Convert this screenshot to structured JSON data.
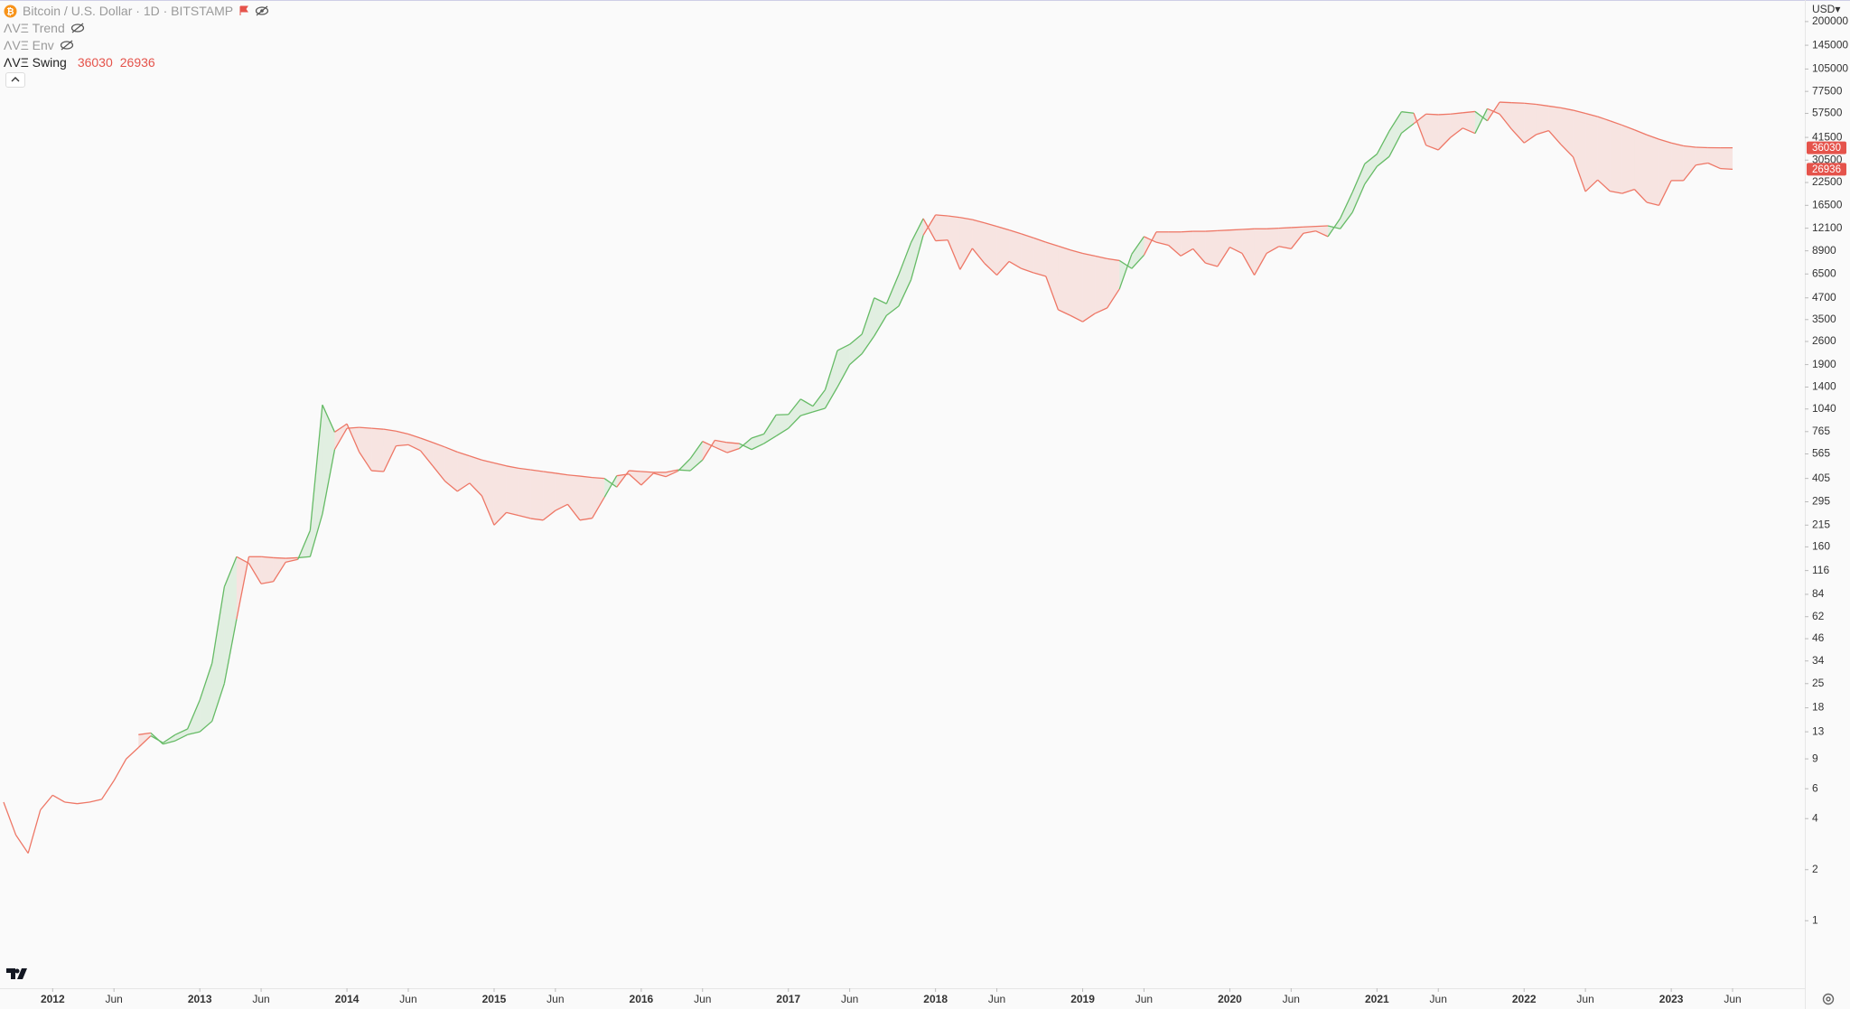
{
  "chart_data": {
    "type": "line",
    "title": "Bitcoin / U.S. Dollar · 1D · BITSTAMP",
    "currency": "USD",
    "indicators": [
      "ΛVΞ Trend",
      "ΛVΞ Env",
      "ΛVΞ Swing"
    ],
    "log": true,
    "x": [
      "2011-09",
      "2011-10",
      "2011-11",
      "2011-12",
      "2012-01",
      "2012-02",
      "2012-03",
      "2012-04",
      "2012-05",
      "2012-06",
      "2012-07",
      "2012-08",
      "2012-09",
      "2012-10",
      "2012-11",
      "2012-12",
      "2013-01",
      "2013-02",
      "2013-03",
      "2013-04",
      "2013-05",
      "2013-06",
      "2013-07",
      "2013-08",
      "2013-09",
      "2013-10",
      "2013-11",
      "2013-12",
      "2014-01",
      "2014-02",
      "2014-03",
      "2014-04",
      "2014-05",
      "2014-06",
      "2014-07",
      "2014-08",
      "2014-09",
      "2014-10",
      "2014-11",
      "2014-12",
      "2015-01",
      "2015-02",
      "2015-03",
      "2015-04",
      "2015-05",
      "2015-06",
      "2015-07",
      "2015-08",
      "2015-09",
      "2015-10",
      "2015-11",
      "2015-12",
      "2016-01",
      "2016-02",
      "2016-03",
      "2016-04",
      "2016-05",
      "2016-06",
      "2016-07",
      "2016-08",
      "2016-09",
      "2016-10",
      "2016-11",
      "2016-12",
      "2017-01",
      "2017-02",
      "2017-03",
      "2017-04",
      "2017-05",
      "2017-06",
      "2017-07",
      "2017-08",
      "2017-09",
      "2017-10",
      "2017-11",
      "2017-12",
      "2018-01",
      "2018-02",
      "2018-03",
      "2018-04",
      "2018-05",
      "2018-06",
      "2018-07",
      "2018-08",
      "2018-09",
      "2018-10",
      "2018-11",
      "2018-12",
      "2019-01",
      "2019-02",
      "2019-03",
      "2019-04",
      "2019-05",
      "2019-06",
      "2019-07",
      "2019-08",
      "2019-09",
      "2019-10",
      "2019-11",
      "2019-12",
      "2020-01",
      "2020-02",
      "2020-03",
      "2020-04",
      "2020-05",
      "2020-06",
      "2020-07",
      "2020-08",
      "2020-09",
      "2020-10",
      "2020-11",
      "2020-12",
      "2021-01",
      "2021-02",
      "2021-03",
      "2021-04",
      "2021-05",
      "2021-06",
      "2021-07",
      "2021-08",
      "2021-09",
      "2021-10",
      "2021-11",
      "2021-12",
      "2022-01",
      "2022-02",
      "2022-03",
      "2022-04",
      "2022-05",
      "2022-06",
      "2022-07",
      "2022-08",
      "2022-09",
      "2022-10",
      "2022-11",
      "2022-12",
      "2023-01",
      "2023-02",
      "2023-03",
      "2023-04",
      "2023-05",
      "2023-06"
    ],
    "series": [
      {
        "values": [
          5,
          3.2,
          2.5,
          4.5,
          5.5,
          5,
          4.9,
          5,
          5.2,
          6.7,
          9,
          10.5,
          12.3,
          11.2,
          12.5,
          13.5,
          20,
          33,
          93,
          140,
          128,
          97,
          100,
          130,
          135,
          200,
          1100,
          760,
          850,
          580,
          450,
          445,
          630,
          640,
          590,
          480,
          390,
          340,
          380,
          320,
          215,
          255,
          245,
          235,
          230,
          262,
          285,
          230,
          236,
          314,
          420,
          430,
          370,
          435,
          415,
          448,
          530,
          670,
          620,
          575,
          608,
          700,
          740,
          960,
          965,
          1190,
          1080,
          1350,
          2300,
          2500,
          2870,
          4700,
          4340,
          6450,
          9950,
          13800,
          10200,
          10300,
          6900,
          9200,
          7500,
          6400,
          7700,
          7000,
          6600,
          6300,
          4000,
          3700,
          3400,
          3800,
          4100,
          5300,
          8500,
          10800,
          10000,
          9600,
          8300,
          9150,
          7550,
          7200,
          9350,
          8600,
          6400,
          8600,
          9450,
          9150,
          11300,
          11650,
          10800,
          13800,
          19700,
          29000,
          33100,
          45200,
          58800,
          57700,
          37300,
          35000,
          41500,
          47100,
          43800,
          61300,
          57000,
          46200,
          38500,
          43200,
          45500,
          37700,
          31800,
          19900,
          23300,
          20000,
          19400,
          20500,
          17200,
          16500,
          23100,
          23100,
          28500,
          29300,
          27200,
          26936
        ]
      },
      {
        "values": [
          null,
          null,
          null,
          null,
          null,
          null,
          null,
          null,
          null,
          null,
          null,
          12.5,
          12.8,
          11,
          11.5,
          12.5,
          13,
          15,
          25,
          60,
          140,
          140,
          138,
          137,
          138,
          140,
          250,
          600,
          800,
          810,
          800,
          790,
          770,
          740,
          700,
          660,
          620,
          580,
          550,
          520,
          500,
          480,
          465,
          455,
          445,
          435,
          425,
          418,
          410,
          405,
          360,
          450,
          445,
          440,
          440,
          455,
          450,
          520,
          680,
          660,
          650,
          600,
          650,
          720,
          800,
          950,
          1000,
          1050,
          1400,
          1900,
          2200,
          2800,
          3700,
          4200,
          6000,
          11000,
          14500,
          14300,
          14000,
          13600,
          13000,
          12400,
          11800,
          11200,
          10600,
          10000,
          9500,
          9000,
          8600,
          8300,
          8000,
          7800,
          7000,
          8400,
          11500,
          11500,
          11500,
          11600,
          11600,
          11700,
          11800,
          11900,
          12000,
          12000,
          12100,
          12200,
          12300,
          12400,
          12500,
          12000,
          15000,
          22000,
          28000,
          32000,
          44000,
          50000,
          57000,
          56500,
          57000,
          58000,
          59000,
          52000,
          67000,
          66500,
          66000,
          65000,
          63500,
          62000,
          60000,
          57500,
          55000,
          52000,
          49000,
          46000,
          43000,
          40500,
          38500,
          37000,
          36300,
          36100,
          36050,
          36030
        ]
      }
    ],
    "point_colors": [
      "#e76",
      "#e76",
      "#e76",
      "#e76",
      "#e76",
      "#e76",
      "#e76",
      "#e76",
      "#e76",
      "#e76",
      "#e76",
      "#e76",
      "#e76",
      "#6b6",
      "#6b6",
      "#6b6",
      "#6b6",
      "#6b6",
      "#6b6",
      "#6b6",
      "#e76",
      "#e76",
      "#e76",
      "#e76",
      "#e76",
      "#6b6",
      "#6b6",
      "#6b6",
      "#e76",
      "#e76",
      "#e76",
      "#e76",
      "#e76",
      "#e76",
      "#e76",
      "#e76",
      "#e76",
      "#e76",
      "#e76",
      "#e76",
      "#e76",
      "#e76",
      "#e76",
      "#e76",
      "#e76",
      "#e76",
      "#e76",
      "#e76",
      "#e76",
      "#e76",
      "#6b6",
      "#e76",
      "#e76",
      "#e76",
      "#e76",
      "#e76",
      "#6b6",
      "#6b6",
      "#e76",
      "#e76",
      "#e76",
      "#6b6",
      "#6b6",
      "#6b6",
      "#6b6",
      "#6b6",
      "#6b6",
      "#6b6",
      "#6b6",
      "#6b6",
      "#6b6",
      "#6b6",
      "#6b6",
      "#6b6",
      "#6b6",
      "#6b6",
      "#e76",
      "#e76",
      "#e76",
      "#e76",
      "#e76",
      "#e76",
      "#e76",
      "#e76",
      "#e76",
      "#e76",
      "#e76",
      "#e76",
      "#e76",
      "#e76",
      "#e76",
      "#e76",
      "#6b6",
      "#6b6",
      "#e76",
      "#e76",
      "#e76",
      "#e76",
      "#e76",
      "#e76",
      "#e76",
      "#e76",
      "#e76",
      "#e76",
      "#e76",
      "#e76",
      "#e76",
      "#e76",
      "#e76",
      "#6b6",
      "#6b6",
      "#6b6",
      "#6b6",
      "#6b6",
      "#6b6",
      "#6b6",
      "#e76",
      "#e76",
      "#e76",
      "#e76",
      "#e76",
      "#6b6",
      "#e76",
      "#e76",
      "#e76",
      "#e76",
      "#e76",
      "#e76",
      "#e76",
      "#e76",
      "#e76",
      "#e76",
      "#e76",
      "#e76",
      "#e76",
      "#e76",
      "#e76",
      "#e76",
      "#e76",
      "#e76",
      "#e76",
      "#e76"
    ],
    "badge_color": "#e5534b",
    "xlim": [
      "2011-09",
      "2023-06"
    ],
    "xticks": [
      {
        "value": "2012-01",
        "label": "2012"
      },
      {
        "value": "2012-06",
        "label": "Jun"
      },
      {
        "value": "2013-01",
        "label": "2013"
      },
      {
        "value": "2013-06",
        "label": "Jun"
      },
      {
        "value": "2014-01",
        "label": "2014"
      },
      {
        "value": "2014-06",
        "label": "Jun"
      },
      {
        "value": "2015-01",
        "label": "2015"
      },
      {
        "value": "2015-06",
        "label": "Jun"
      },
      {
        "value": "2016-01",
        "label": "2016"
      },
      {
        "value": "2016-06",
        "label": "Jun"
      },
      {
        "value": "2017-01",
        "label": "2017"
      },
      {
        "value": "2017-06",
        "label": "Jun"
      },
      {
        "value": "2018-01",
        "label": "2018"
      },
      {
        "value": "2018-06",
        "label": "Jun"
      },
      {
        "value": "2019-01",
        "label": "2019"
      },
      {
        "value": "2019-06",
        "label": "Jun"
      },
      {
        "value": "2020-01",
        "label": "2020"
      },
      {
        "value": "2020-06",
        "label": "Jun"
      },
      {
        "value": "2021-01",
        "label": "2021"
      },
      {
        "value": "2021-06",
        "label": "Jun"
      },
      {
        "value": "2022-01",
        "label": "2022"
      },
      {
        "value": "2022-06",
        "label": "Jun"
      },
      {
        "value": "2023-01",
        "label": "2023"
      },
      {
        "value": "2023-06",
        "label": "Jun"
      }
    ],
    "ylim": [
      0.4,
      268000
    ],
    "yticks": [
      200000,
      145000,
      105000,
      77500,
      57500,
      41500,
      30500,
      22500,
      16500,
      12100,
      8900,
      6500,
      4700,
      3500,
      2600,
      1900,
      1400,
      1040,
      765,
      565,
      405,
      295,
      215,
      160,
      116,
      84,
      62,
      46,
      34,
      25,
      18,
      13,
      9,
      6,
      4,
      2,
      1
    ]
  }
}
